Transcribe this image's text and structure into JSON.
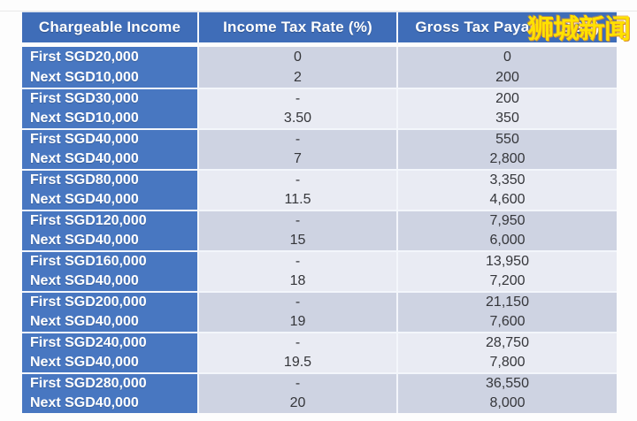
{
  "watermark": "狮城新闻",
  "colors": {
    "header_bg": "#3f6db8",
    "row_label_bg": "#4877c1",
    "band_dark": "#ced3e2",
    "band_light": "#e9ebf3",
    "header_text": "#ffffff",
    "value_text": "#35363a",
    "watermark_color": "#ffe100"
  },
  "table": {
    "headers": [
      "Chargeable Income",
      "Income Tax Rate (%)",
      "Gross Tax Payable (SGD)"
    ],
    "bands": [
      [
        [
          "First SGD20,000",
          "0",
          "0"
        ],
        [
          "Next SGD10,000",
          "2",
          "200"
        ]
      ],
      [
        [
          "First SGD30,000",
          "-",
          "200"
        ],
        [
          "Next SGD10,000",
          "3.50",
          "350"
        ]
      ],
      [
        [
          "First SGD40,000",
          "-",
          "550"
        ],
        [
          "Next SGD40,000",
          "7",
          "2,800"
        ]
      ],
      [
        [
          "First SGD80,000",
          "-",
          "3,350"
        ],
        [
          "Next SGD40,000",
          "11.5",
          "4,600"
        ]
      ],
      [
        [
          "First SGD120,000",
          "-",
          "7,950"
        ],
        [
          "Next SGD40,000",
          "15",
          "6,000"
        ]
      ],
      [
        [
          "First SGD160,000",
          "-",
          "13,950"
        ],
        [
          "Next SGD40,000",
          "18",
          "7,200"
        ]
      ],
      [
        [
          "First SGD200,000",
          "-",
          "21,150"
        ],
        [
          "Next SGD40,000",
          "19",
          "7,600"
        ]
      ],
      [
        [
          "First SGD240,000",
          "-",
          "28,750"
        ],
        [
          "Next SGD40,000",
          "19.5",
          "7,800"
        ]
      ],
      [
        [
          "First SGD280,000",
          "-",
          "36,550"
        ],
        [
          "Next SGD40,000",
          "20",
          "8,000"
        ]
      ]
    ]
  }
}
